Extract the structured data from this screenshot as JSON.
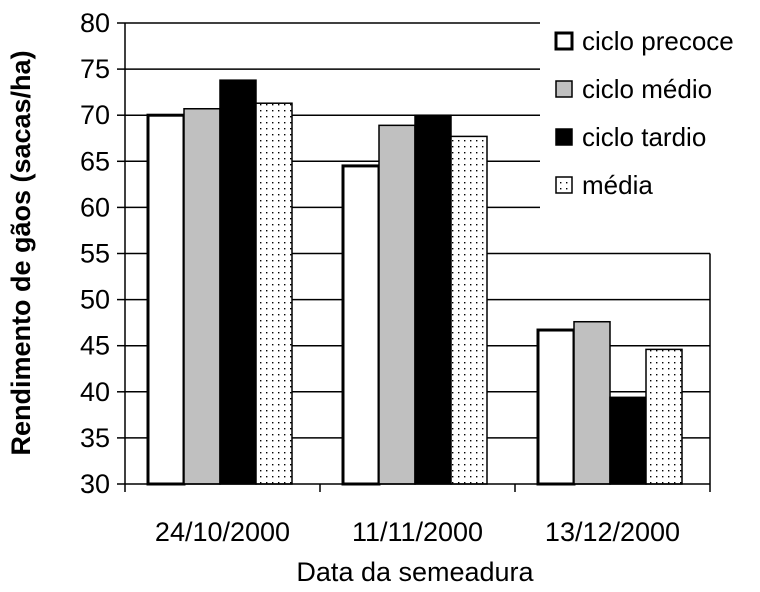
{
  "chart_data": {
    "type": "bar",
    "categories": [
      "24/10/2000",
      "11/11/2000",
      "13/12/2000"
    ],
    "series": [
      {
        "name": "ciclo precoce",
        "values": [
          70.0,
          64.5,
          46.7
        ],
        "pattern": "white"
      },
      {
        "name": "ciclo médio",
        "values": [
          70.7,
          68.9,
          47.6
        ],
        "pattern": "gray"
      },
      {
        "name": "ciclo tardio",
        "values": [
          73.8,
          70.0,
          39.4
        ],
        "pattern": "black"
      },
      {
        "name": "média",
        "values": [
          71.3,
          67.7,
          44.6
        ],
        "pattern": "dotted"
      }
    ],
    "xlabel": "Data da semeadura",
    "ylabel": "Rendimento de gãos (sacas/ha)",
    "ylim": [
      30,
      80
    ],
    "yticks": [
      30,
      35,
      40,
      45,
      50,
      55,
      60,
      65,
      70,
      75,
      80
    ],
    "grid": true,
    "legend": "top-right",
    "colors": {
      "white": "#ffffff",
      "gray": "#c0c0c0",
      "black": "#000000",
      "dotted_bg": "#ffffff",
      "dot": "#000000"
    }
  }
}
